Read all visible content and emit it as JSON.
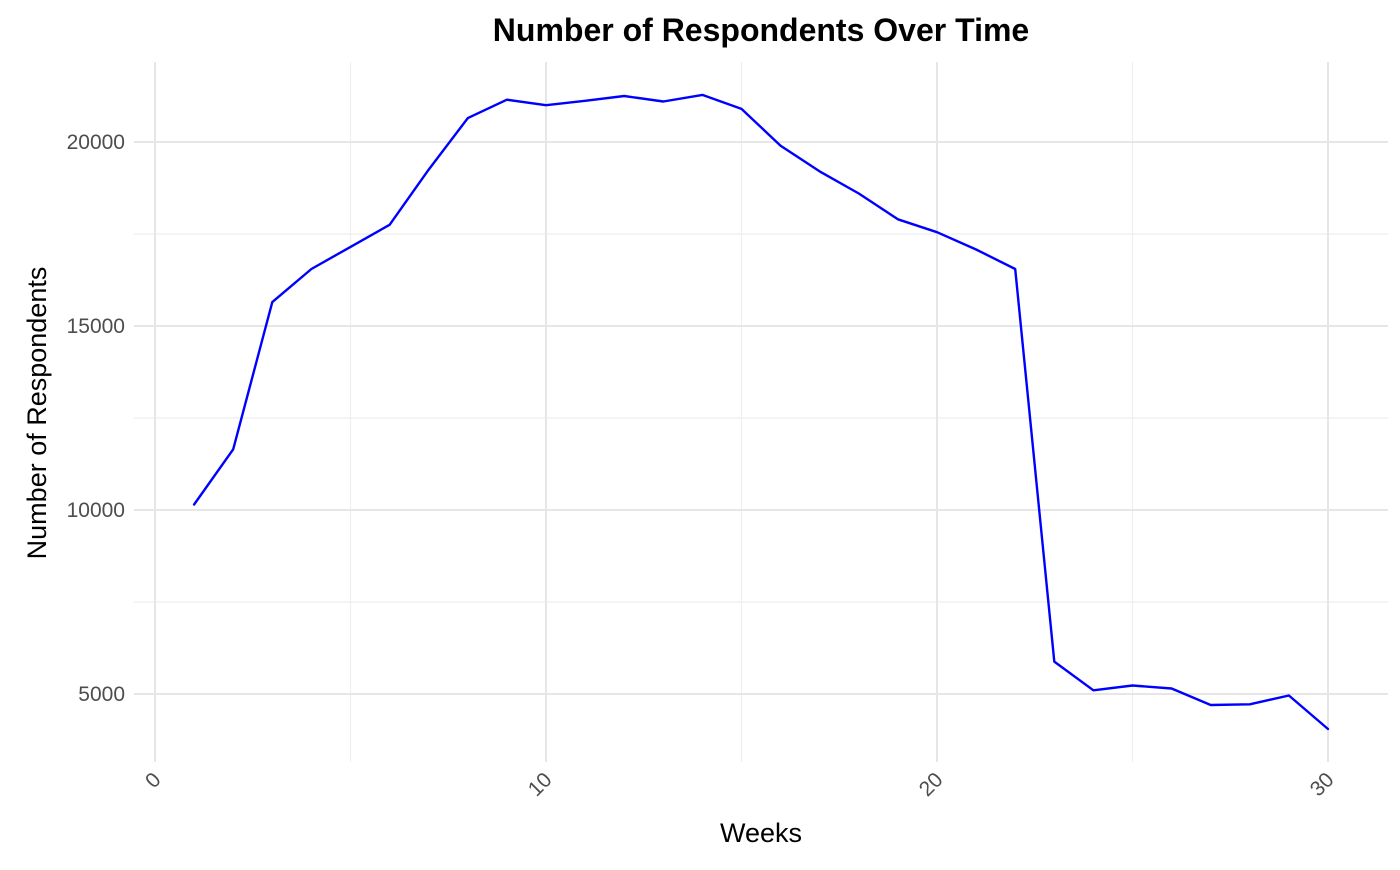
{
  "chart_data": {
    "type": "line",
    "title": "Number of Respondents Over Time",
    "xlabel": "Weeks",
    "ylabel": "Number of Respondents",
    "xlim": [
      0,
      30
    ],
    "ylim": [
      3500,
      22200
    ],
    "x_ticks": [
      0,
      10,
      20,
      30
    ],
    "y_ticks": [
      5000,
      10000,
      15000,
      20000
    ],
    "grid": true,
    "legend": "none",
    "series": [
      {
        "color": "#0000ff",
        "x": [
          1,
          2,
          3,
          4,
          5,
          6,
          7,
          8,
          9,
          10,
          11,
          12,
          13,
          14,
          15,
          16,
          17,
          18,
          19,
          20,
          21,
          22,
          23,
          24,
          25,
          26,
          27,
          28,
          29,
          30
        ],
        "y": [
          10150,
          11650,
          15650,
          16550,
          17150,
          17750,
          19250,
          20650,
          21150,
          21000,
          21120,
          21250,
          21100,
          21280,
          20900,
          19900,
          19200,
          18600,
          17900,
          17550,
          17080,
          16550,
          5880,
          5100,
          5230,
          5150,
          4700,
          4720,
          4960,
          4050
        ]
      }
    ]
  }
}
